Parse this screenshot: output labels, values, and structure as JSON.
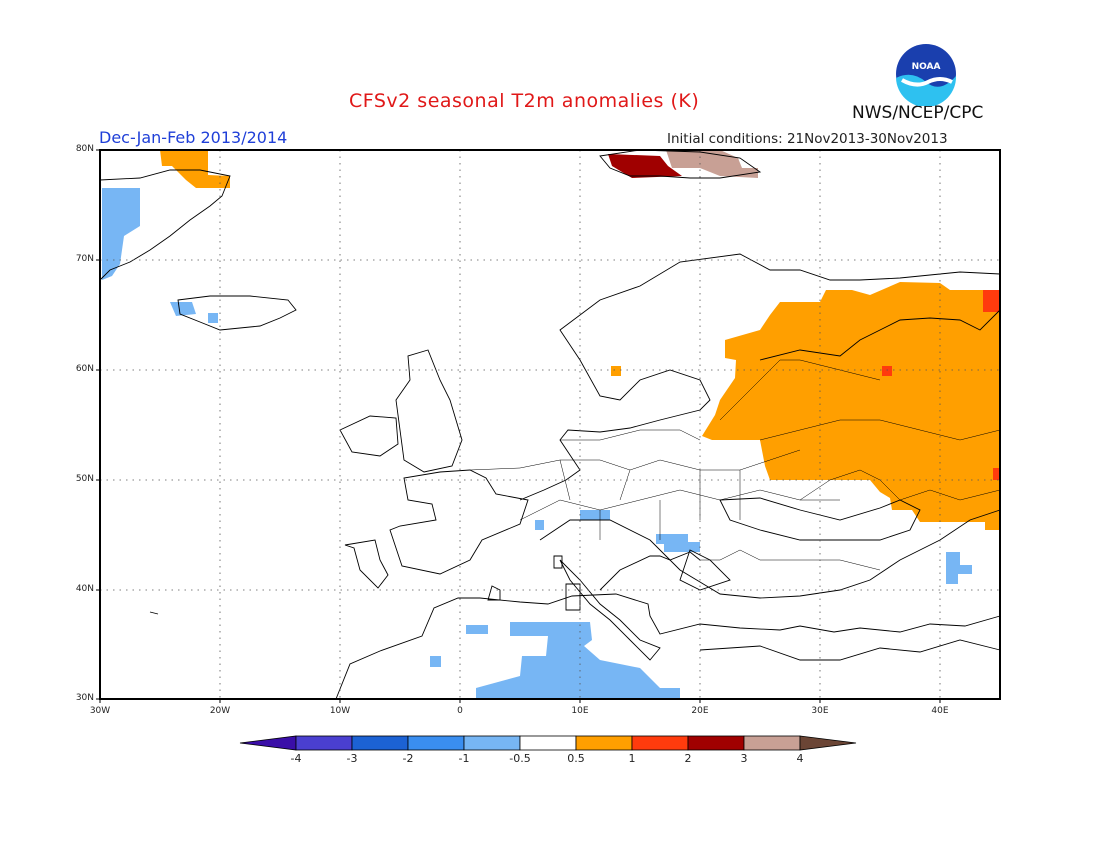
{
  "title": "CFSv2 seasonal T2m anomalies (K)",
  "season": "Dec-Jan-Feb 2013/2014",
  "initial_conditions": "Initial conditions: 21Nov2013-30Nov2013",
  "organization": "NWS/NCEP/CPC",
  "logo_text": "NOAA",
  "colors": {
    "title": "#e01818",
    "season": "#1f3fd8",
    "frame": "#000000"
  },
  "map": {
    "lon_range": [
      -30,
      45
    ],
    "lat_range": [
      30,
      80
    ],
    "y_ticks": [
      "80N",
      "70N",
      "60N",
      "50N",
      "40N",
      "30N"
    ],
    "x_ticks": [
      "30W",
      "20W",
      "10W",
      "0",
      "10E",
      "20E",
      "30E",
      "40E"
    ]
  },
  "colorbar": {
    "labels": [
      "-4",
      "-3",
      "-2",
      "-1",
      "-0.5",
      "0.5",
      "1",
      "2",
      "3",
      "4"
    ],
    "colors": [
      "#3a0ea8",
      "#4a3fd0",
      "#1c62d4",
      "#3a8ef0",
      "#77b6f4",
      "#ffffff",
      "#ff9f00",
      "#ff3b0d",
      "#a00000",
      "#c8a095",
      "#6b4535"
    ]
  }
}
